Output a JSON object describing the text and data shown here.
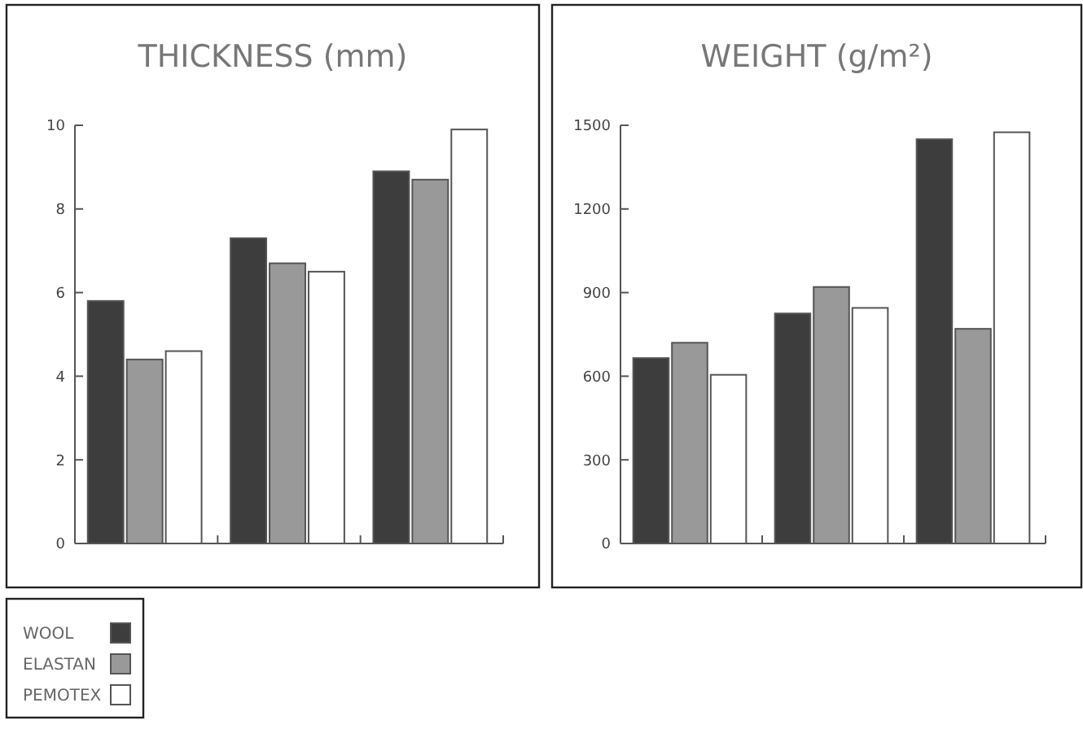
{
  "chart_data": [
    {
      "type": "bar",
      "title": "THICKNESS (mm)",
      "categories": [
        null,
        null,
        null
      ],
      "ylim": [
        0,
        10
      ],
      "yticks": [
        0,
        2,
        4,
        6,
        8,
        10
      ],
      "grid": false,
      "legend": "bottom left",
      "series": [
        {
          "name": "WOOL",
          "color": "#3d3d3d",
          "values": [
            5.8,
            7.3,
            8.9
          ]
        },
        {
          "name": "ELASTAN",
          "color": "#999999",
          "values": [
            4.4,
            6.7,
            8.7
          ]
        },
        {
          "name": "PEMOTEX",
          "color": "#ffffff",
          "values": [
            4.6,
            6.5,
            9.9
          ]
        }
      ]
    },
    {
      "type": "bar",
      "title": "WEIGHT (g/m²)",
      "categories": [
        null,
        null,
        null
      ],
      "ylim": [
        0,
        1500
      ],
      "yticks": [
        0,
        300,
        600,
        900,
        1200,
        1500
      ],
      "grid": false,
      "legend": false,
      "series": [
        {
          "color": "#3d3d3d",
          "values": [
            665,
            825,
            1450
          ]
        },
        {
          "color": "#999999",
          "values": [
            720,
            920,
            770
          ]
        },
        {
          "color": "#ffffff",
          "values": [
            605,
            845,
            1475
          ]
        }
      ]
    }
  ]
}
